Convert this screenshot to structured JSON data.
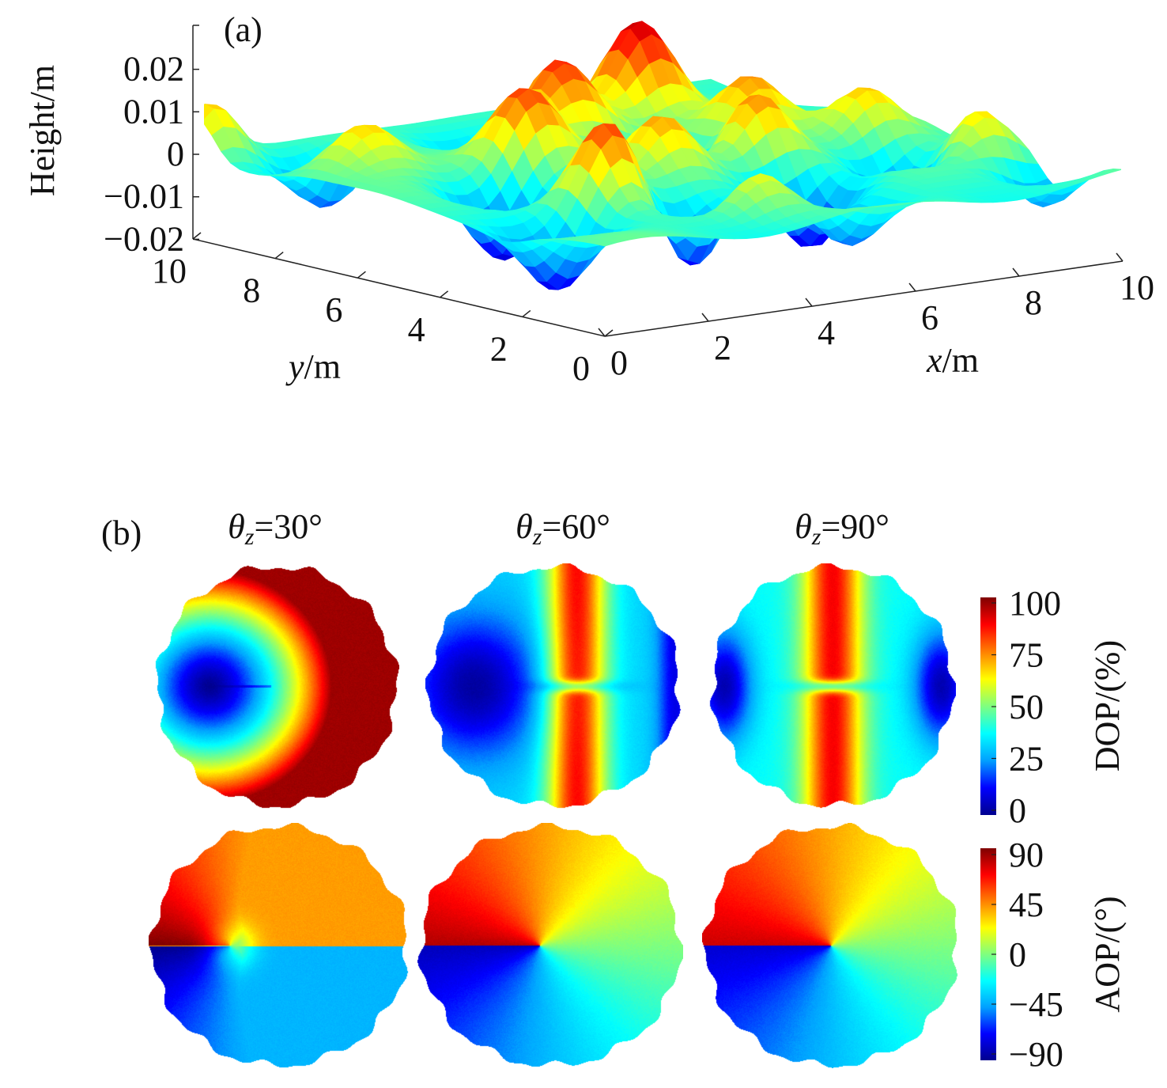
{
  "colors": {
    "jet": [
      "#00008f",
      "#0000ff",
      "#00a0ff",
      "#00ffff",
      "#7fff7f",
      "#ffff00",
      "#ff8000",
      "#ff0000",
      "#7f0000"
    ],
    "axis": "#222222",
    "background": "#ffffff"
  },
  "chart_data": [
    {
      "type": "surface",
      "panel_label": "(a)",
      "title": "",
      "zlabel": "Height/m",
      "xlabel_italic": "x",
      "xlabel_unit": "/m",
      "ylabel_italic": "y",
      "ylabel_unit": "/m",
      "z_ticks": [
        "0.02",
        "0.01",
        "0",
        "−0.01",
        "−0.02"
      ],
      "z_tick_values": [
        0.02,
        0.01,
        0,
        -0.01,
        -0.02
      ],
      "x_ticks": [
        "0",
        "2",
        "4",
        "6",
        "8",
        "10"
      ],
      "y_ticks": [
        "10",
        "8",
        "6",
        "4",
        "2",
        "0"
      ],
      "xlim": [
        0,
        10
      ],
      "ylim": [
        0,
        10
      ],
      "zlim": [
        -0.022,
        0.03
      ],
      "colormap": "jet"
    },
    {
      "type": "heatmap",
      "panel_label": "(b)",
      "description_of_grid": "2 rows (DOP, AOP) x 3 columns of polar maps",
      "columns": [
        {
          "theta_symbol": "θ",
          "subscript": "z",
          "value_text": "=30°",
          "theta_z": 30
        },
        {
          "theta_symbol": "θ",
          "subscript": "z",
          "value_text": "=60°",
          "theta_z": 60
        },
        {
          "theta_symbol": "θ",
          "subscript": "z",
          "value_text": "=90°",
          "theta_z": 90
        }
      ],
      "rows": [
        {
          "quantity": "DOP",
          "colorbar_label": "DOP/(%)",
          "range": [
            0,
            100
          ],
          "ticks": [
            "100",
            "75",
            "50",
            "25",
            "0"
          ],
          "tick_values": [
            100,
            75,
            50,
            25,
            0
          ]
        },
        {
          "quantity": "AOP",
          "colorbar_label": "AOP/(°)",
          "range": [
            -90,
            90
          ],
          "ticks": [
            "90",
            "45",
            "0",
            "−45",
            "−90"
          ],
          "tick_values": [
            90,
            45,
            0,
            -45,
            -90
          ]
        }
      ],
      "colormap": "jet"
    }
  ]
}
